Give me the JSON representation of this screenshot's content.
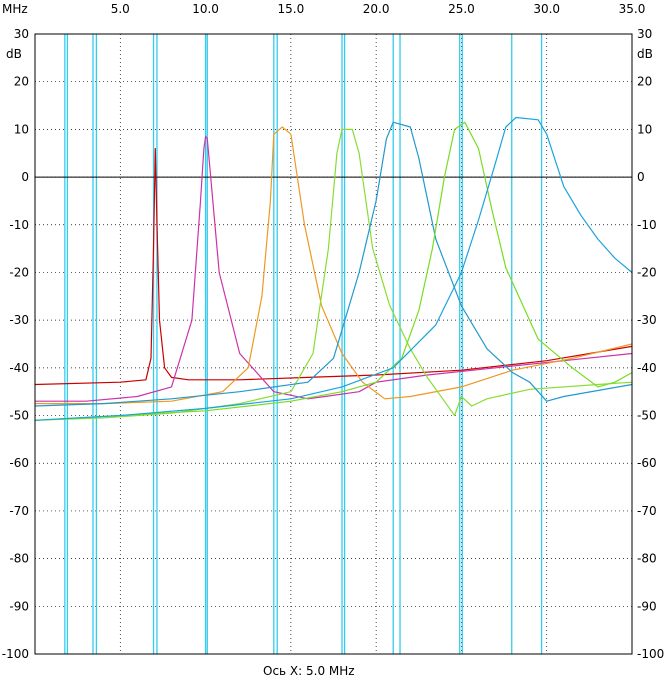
{
  "chart_data": {
    "type": "line",
    "x_unit_label": "MHz",
    "y_unit_label": "dB",
    "xlabel": "Ось X: 5.0 MHz",
    "xlim": [
      0,
      35
    ],
    "ylim": [
      -100,
      30
    ],
    "x_ticks": [
      5.0,
      10.0,
      15.0,
      20.0,
      25.0,
      30.0,
      35.0
    ],
    "x_tick_labels": [
      "5.0",
      "10.0",
      "15.0",
      "20.0",
      "25.0",
      "30.0",
      "35.0"
    ],
    "y_ticks": [
      30,
      20,
      10,
      0,
      -10,
      -20,
      -30,
      -40,
      -50,
      -60,
      -70,
      -80,
      -90,
      -100
    ],
    "y_tick_labels": [
      "30",
      "20",
      "10",
      "0",
      "-10",
      "-20",
      "-30",
      "-40",
      "-50",
      "-60",
      "-70",
      "-80",
      "-90",
      "-100"
    ],
    "reference_line_y": 0,
    "grid": true,
    "marker_lines": {
      "color": "#33ccee",
      "x": [
        1.75,
        1.9,
        3.4,
        3.6,
        6.95,
        7.15,
        10.0,
        10.1,
        14.0,
        14.2,
        18.0,
        18.15,
        21.0,
        21.4,
        24.9,
        25.05,
        27.95,
        29.7
      ]
    },
    "series": [
      {
        "color": "#cc0000",
        "x": [
          0,
          5,
          6.5,
          6.8,
          6.95,
          7.05,
          7.15,
          7.3,
          7.6,
          8.0,
          9,
          12,
          16,
          20,
          25,
          30,
          35
        ],
        "y": [
          -43.5,
          -43,
          -42.5,
          -38,
          -15,
          6,
          -10,
          -30,
          -40,
          -42,
          -42.5,
          -42.5,
          -42,
          -41.5,
          -40.5,
          -38.5,
          -35.5
        ]
      },
      {
        "color": "#cc33aa",
        "x": [
          0,
          3,
          6,
          8,
          9.2,
          9.7,
          9.9,
          10.0,
          10.1,
          10.3,
          10.8,
          12.0,
          14.0,
          16.0,
          17,
          19,
          20,
          23,
          27,
          31,
          35
        ],
        "y": [
          -47,
          -47,
          -46,
          -44,
          -30,
          -5,
          6,
          8.5,
          8,
          0,
          -20,
          -37,
          -45,
          -46.5,
          -46,
          -45,
          -43,
          -41.5,
          -40,
          -38.5,
          -37
        ]
      },
      {
        "color": "#ee9922",
        "x": [
          0,
          4,
          8,
          11,
          12.5,
          13.3,
          13.8,
          14.0,
          14.5,
          15.0,
          15.8,
          16.8,
          18.0,
          19.2,
          20.5,
          22.0,
          25.0,
          28.0,
          31.5,
          35
        ],
        "y": [
          -47.5,
          -47.5,
          -47,
          -45,
          -40,
          -25,
          -5,
          9,
          10.5,
          9,
          -10,
          -27,
          -37,
          -43,
          -46.5,
          -46,
          -44,
          -40.5,
          -38,
          -35
        ]
      },
      {
        "color": "#88dd33",
        "x": [
          0,
          4,
          8,
          12,
          15,
          16.3,
          17.2,
          17.7,
          18.0,
          18.6,
          19.0,
          19.8,
          20.8,
          22.0,
          23.0,
          24.0,
          24.6,
          25.0,
          25.6,
          26.5,
          29,
          33,
          35
        ],
        "y": [
          -51,
          -50.5,
          -49.5,
          -47.5,
          -45,
          -37,
          -15,
          5,
          10,
          10,
          5,
          -15,
          -27,
          -36,
          -42,
          -47,
          -50,
          -46,
          -48,
          -46.5,
          -44.5,
          -43.5,
          -43
        ]
      },
      {
        "color": "#2299cc",
        "x": [
          0,
          4,
          8,
          12,
          16,
          17.5,
          19.0,
          20.0,
          20.6,
          21.0,
          22.0,
          22.5,
          23.5,
          25.0,
          26.5,
          28.0,
          29.0,
          30.0,
          31.0,
          35
        ],
        "y": [
          -48,
          -47.5,
          -46.5,
          -45,
          -43,
          -38,
          -20,
          -5,
          8,
          11.5,
          10.5,
          4,
          -13,
          -27,
          -36,
          -41,
          -43,
          -47,
          -46,
          -43.5
        ]
      },
      {
        "color": "#77dd22",
        "x": [
          0,
          5,
          10,
          15,
          18,
          20,
          21.5,
          22.5,
          23.3,
          24.0,
          24.6,
          25.2,
          26.0,
          26.8,
          27.6,
          29.5,
          31.5,
          33.0,
          34,
          35
        ],
        "y": [
          -51,
          -50,
          -49,
          -47,
          -45,
          -43,
          -38,
          -28,
          -15,
          0,
          10,
          11.5,
          6,
          -7,
          -19,
          -34,
          -40,
          -44,
          -43,
          -41
        ]
      },
      {
        "color": "#1aa3dd",
        "x": [
          0,
          5,
          10,
          15,
          18,
          21,
          23.5,
          25.0,
          26.0,
          27.0,
          27.6,
          28.2,
          29.5,
          30.0,
          31.0,
          32.0,
          33.0,
          34.0,
          35
        ],
        "y": [
          -51,
          -50,
          -48.5,
          -46.5,
          -44,
          -40,
          -31,
          -20,
          -9,
          3,
          10.5,
          12.5,
          12,
          9,
          -2,
          -8,
          -13,
          -17,
          -20
        ]
      }
    ]
  }
}
